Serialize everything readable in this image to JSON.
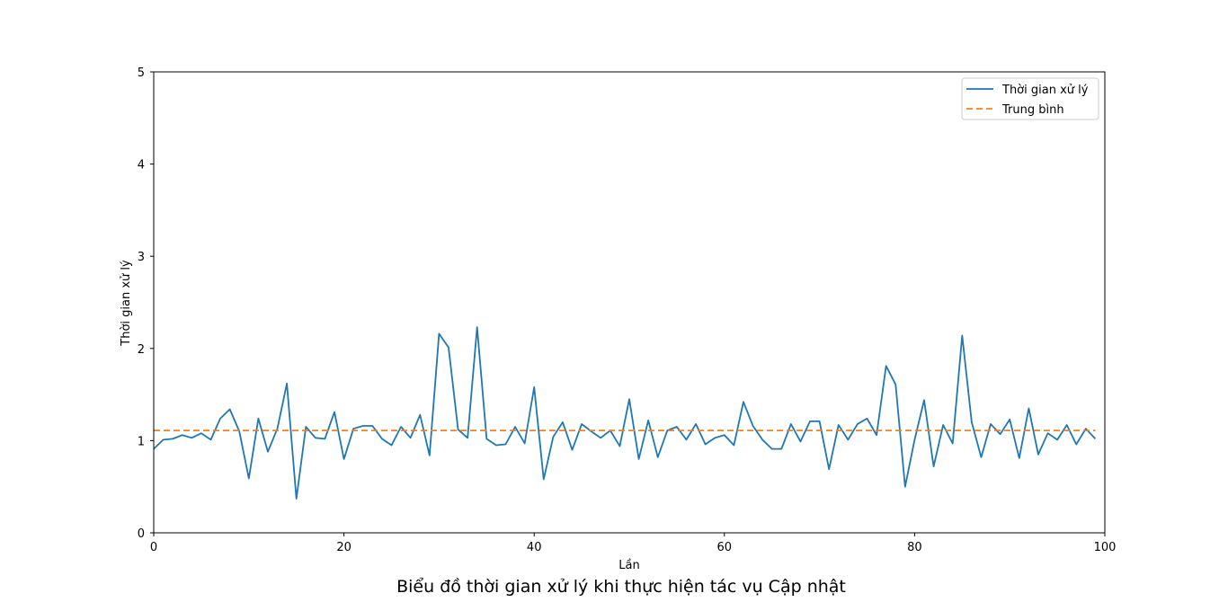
{
  "caption": "Biểu đồ thời gian xử lý khi thực hiện tác vụ Cập nhật",
  "chart_data": {
    "type": "line",
    "title": "",
    "xlabel": "Lần",
    "ylabel": "Thời gian xử lý",
    "xlim": [
      0,
      100
    ],
    "ylim": [
      0,
      5
    ],
    "x_ticks": [
      0,
      20,
      40,
      60,
      80,
      100
    ],
    "y_ticks": [
      0,
      1,
      2,
      3,
      4,
      5
    ],
    "grid": false,
    "legend_position": "top-right",
    "series": [
      {
        "name": "Thời gian xử lý",
        "color": "#1f77b4",
        "style": "solid",
        "x": [
          0,
          1,
          2,
          3,
          4,
          5,
          6,
          7,
          8,
          9,
          10,
          11,
          12,
          13,
          14,
          15,
          16,
          17,
          18,
          19,
          20,
          21,
          22,
          23,
          24,
          25,
          26,
          27,
          28,
          29,
          30,
          31,
          32,
          33,
          34,
          35,
          36,
          37,
          38,
          39,
          40,
          41,
          42,
          43,
          44,
          45,
          46,
          47,
          48,
          49,
          50,
          51,
          52,
          53,
          54,
          55,
          56,
          57,
          58,
          59,
          60,
          61,
          62,
          63,
          64,
          65,
          66,
          67,
          68,
          69,
          70,
          71,
          72,
          73,
          74,
          75,
          76,
          77,
          78,
          79,
          80,
          81,
          82,
          83,
          84,
          85,
          86,
          87,
          88,
          89,
          90,
          91,
          92,
          93,
          94,
          95,
          96,
          97,
          98,
          99
        ],
        "values": [
          0.91,
          1.01,
          1.02,
          1.06,
          1.03,
          1.08,
          1.01,
          1.24,
          1.34,
          1.1,
          0.59,
          1.24,
          0.88,
          1.13,
          1.62,
          0.37,
          1.15,
          1.03,
          1.02,
          1.31,
          0.8,
          1.13,
          1.16,
          1.16,
          1.02,
          0.95,
          1.15,
          1.03,
          1.28,
          0.84,
          2.16,
          2.01,
          1.12,
          1.03,
          2.23,
          1.02,
          0.95,
          0.96,
          1.15,
          0.97,
          1.58,
          0.58,
          1.04,
          1.2,
          0.9,
          1.18,
          1.1,
          1.03,
          1.11,
          0.94,
          1.45,
          0.8,
          1.22,
          0.82,
          1.11,
          1.15,
          1.01,
          1.18,
          0.96,
          1.03,
          1.06,
          0.95,
          1.42,
          1.16,
          1.01,
          0.91,
          0.91,
          1.18,
          0.99,
          1.21,
          1.21,
          0.69,
          1.17,
          1.01,
          1.18,
          1.24,
          1.06,
          1.81,
          1.61,
          0.5,
          1.01,
          1.44,
          0.72,
          1.17,
          0.97,
          2.14,
          1.2,
          0.82,
          1.18,
          1.07,
          1.23,
          0.81,
          1.35,
          0.85,
          1.08,
          1.01,
          1.17,
          0.96,
          1.13,
          1.02
        ]
      },
      {
        "name": "Trung bình",
        "color": "#ff7f0e",
        "style": "dashed",
        "x": [
          0,
          99
        ],
        "values": [
          1.11,
          1.11
        ]
      }
    ]
  }
}
